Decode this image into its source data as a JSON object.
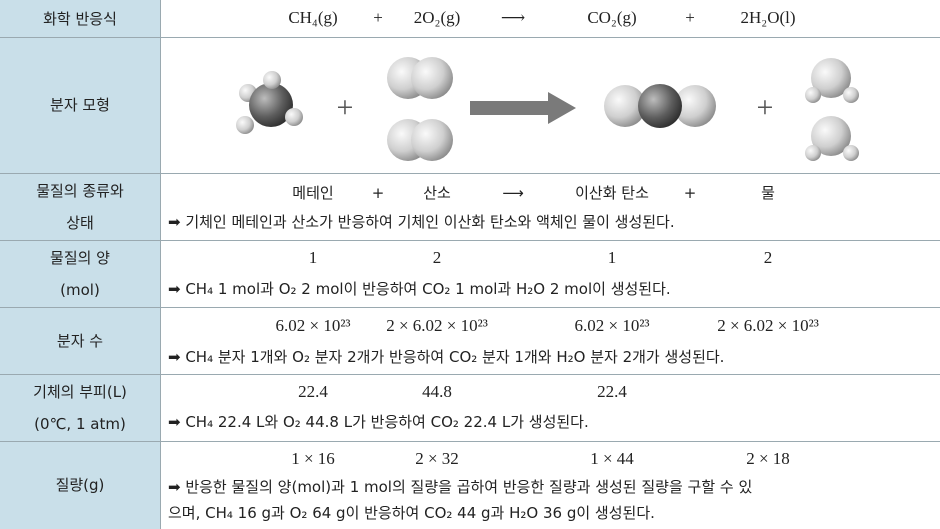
{
  "rows": [
    {
      "label": [
        "화학 반응식"
      ],
      "items": [
        "CH₄(g)",
        "+",
        "2O₂(g)",
        "⟶",
        "CO₂(g)",
        "+",
        "2H₂O(l)"
      ]
    },
    {
      "label": [
        "분자 모형"
      ],
      "items": [
        "+",
        "+"
      ]
    },
    {
      "label": [
        "물질의 종류와",
        "상태"
      ],
      "items": [
        "메테인",
        "+",
        "산소",
        "⟶",
        "이산화 탄소",
        "+",
        "물"
      ],
      "note": [
        "➡ 기체인 메테인과 산소가 반응하여 기체인 이산화 탄소와 액체인 물이 생성된다."
      ]
    },
    {
      "label": [
        "물질의 양",
        "(mol)"
      ],
      "items": [
        "1",
        "2",
        "1",
        "2"
      ],
      "note": [
        "➡ CH₄ 1 mol과 O₂ 2 mol이 반응하여 CO₂ 1 mol과 H₂O 2 mol이 생성된다."
      ]
    },
    {
      "label": [
        "분자 수"
      ],
      "items": [
        "6.02 × 10²³",
        "2 × 6.02 × 10²³",
        "6.02 × 10²³",
        "2 × 6.02 × 10²³"
      ],
      "note": [
        "➡ CH₄ 분자 1개와 O₂ 분자 2개가 반응하여 CO₂ 분자 1개와 H₂O 분자 2개가 생성된다."
      ]
    },
    {
      "label": [
        "기체의 부피(L)",
        "(0℃, 1 atm)"
      ],
      "items": [
        "22.4",
        "44.8",
        "22.4"
      ],
      "note": [
        "➡ CH₄ 22.4 L와 O₂ 44.8 L가 반응하여 CO₂ 22.4 L가 생성된다."
      ]
    },
    {
      "label": [
        "질량(g)"
      ],
      "items": [
        "1 × 16",
        "2 × 32",
        "1 × 44",
        "2 × 18"
      ],
      "note": [
        "➡ 반응한 물질의 양(mol)과 1 mol의 질량을 곱하여 반응한 질량과 생성된 질량을 구할 수 있",
        "으며, CH₄ 16 g과 O₂ 64 g이 반응하여 CO₂ 44 g과 H₂O 36 g이 생성된다."
      ]
    }
  ]
}
